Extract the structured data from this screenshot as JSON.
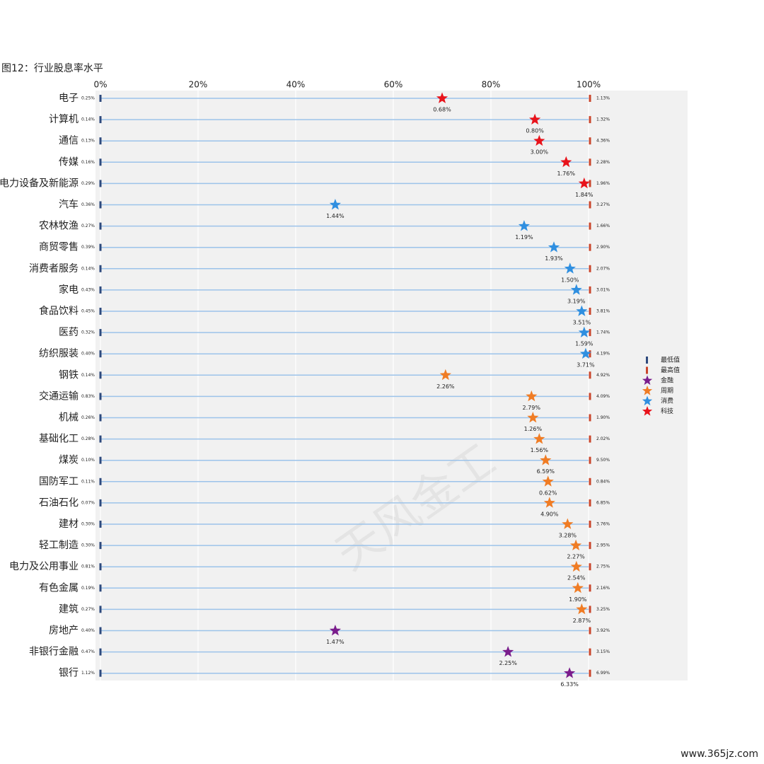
{
  "chart_data": {
    "type": "range_dot",
    "title": "图12：行业股息率水平",
    "watermark": "天风金工",
    "footer": "www.365jz.com",
    "categories": [
      "电子",
      "计算机",
      "通信",
      "传媒",
      "电力设备及新能源",
      "汽车",
      "农林牧渔",
      "商贸零售",
      "消费者服务",
      "家电",
      "食品饮料",
      "医药",
      "纺织服装",
      "钢铁",
      "交通运输",
      "机械",
      "基础化工",
      "煤炭",
      "国防军工",
      "石油石化",
      "建材",
      "轻工制造",
      "电力及公用事业",
      "有色金属",
      "建筑",
      "房地产",
      "非银行金融",
      "银行"
    ],
    "xlim": [
      0,
      100
    ],
    "xticks": [
      {
        "value": 0,
        "label": "0%"
      },
      {
        "value": 20,
        "label": "20%"
      },
      {
        "value": 40,
        "label": "40%"
      },
      {
        "value": 60,
        "label": "60%"
      },
      {
        "value": 80,
        "label": "80%"
      },
      {
        "value": 100,
        "label": "100%"
      }
    ],
    "min": {
      "name": "最低值",
      "color": "#2e4a7d",
      "values": [
        0.25,
        0.14,
        0.13,
        0.16,
        0.29,
        0.36,
        0.27,
        0.39,
        0.14,
        0.43,
        0.45,
        0.32,
        0.4,
        0.14,
        0.83,
        0.26,
        0.28,
        0.1,
        0.11,
        0.07,
        0.3,
        0.3,
        0.81,
        0.19,
        0.27,
        0.4,
        0.47,
        1.12
      ],
      "value_labels": [
        "0.25%",
        "0.14%",
        "0.13%",
        "0.16%",
        "0.29%",
        "0.36%",
        "0.27%",
        "0.39%",
        "0.14%",
        "0.43%",
        "0.45%",
        "0.32%",
        "0.40%",
        "0.14%",
        "0.83%",
        "0.26%",
        "0.28%",
        "0.10%",
        "0.11%",
        "0.07%",
        "0.30%",
        "0.30%",
        "0.81%",
        "0.19%",
        "0.27%",
        "0.40%",
        "0.47%",
        "1.12%"
      ]
    },
    "max": {
      "name": "最高值",
      "color": "#c9462c",
      "values": [
        1.13,
        1.32,
        4.36,
        2.28,
        1.96,
        3.27,
        1.66,
        2.9,
        2.07,
        3.01,
        3.81,
        1.74,
        4.19,
        4.92,
        4.09,
        1.9,
        2.02,
        9.5,
        0.84,
        6.85,
        3.76,
        2.95,
        2.75,
        2.16,
        3.25,
        3.92,
        3.15,
        6.99
      ],
      "value_labels": [
        "1.13%",
        "1.32%",
        "4.36%",
        "2.28%",
        "1.96%",
        "3.27%",
        "1.66%",
        "2.90%",
        "2.07%",
        "3.01%",
        "3.81%",
        "1.74%",
        "4.19%",
        "4.92%",
        "4.09%",
        "1.90%",
        "2.02%",
        "9.50%",
        "0.84%",
        "6.85%",
        "3.76%",
        "2.95%",
        "2.75%",
        "2.16%",
        "3.25%",
        "3.92%",
        "3.15%",
        "6.99%"
      ]
    },
    "current": {
      "percentile": [
        70.0,
        89.0,
        89.9,
        95.4,
        99.1,
        48.1,
        86.8,
        92.9,
        96.2,
        97.5,
        98.6,
        99.1,
        99.4,
        70.7,
        88.3,
        88.6,
        89.9,
        91.2,
        91.7,
        92.0,
        95.7,
        97.4,
        97.5,
        97.8,
        98.6,
        48.1,
        83.5,
        96.1
      ],
      "values": [
        0.68,
        0.8,
        3.0,
        1.76,
        1.84,
        1.44,
        1.19,
        1.93,
        1.5,
        3.19,
        3.51,
        1.59,
        3.71,
        2.26,
        2.79,
        1.26,
        1.56,
        6.59,
        0.62,
        4.9,
        3.28,
        2.27,
        2.54,
        1.9,
        2.87,
        1.47,
        2.25,
        6.33
      ],
      "value_labels": [
        "0.68%",
        "0.80%",
        "3.00%",
        "1.76%",
        "1.84%",
        "1.44%",
        "1.19%",
        "1.93%",
        "1.50%",
        "3.19%",
        "3.51%",
        "1.59%",
        "3.71%",
        "2.26%",
        "2.79%",
        "1.26%",
        "1.56%",
        "6.59%",
        "0.62%",
        "4.90%",
        "3.28%",
        "2.27%",
        "2.54%",
        "1.90%",
        "2.87%",
        "1.47%",
        "2.25%",
        "6.33%"
      ]
    },
    "groups": [
      {
        "name": "金融",
        "color": "#7a1d8c"
      },
      {
        "name": "周期",
        "color": "#f07c24"
      },
      {
        "name": "消费",
        "color": "#2f8fe0"
      },
      {
        "name": "科技",
        "color": "#e8131b"
      }
    ],
    "category_group": [
      3,
      3,
      3,
      3,
      3,
      2,
      2,
      2,
      2,
      2,
      2,
      2,
      2,
      1,
      1,
      1,
      1,
      1,
      1,
      1,
      1,
      1,
      1,
      1,
      1,
      0,
      0,
      0
    ]
  }
}
